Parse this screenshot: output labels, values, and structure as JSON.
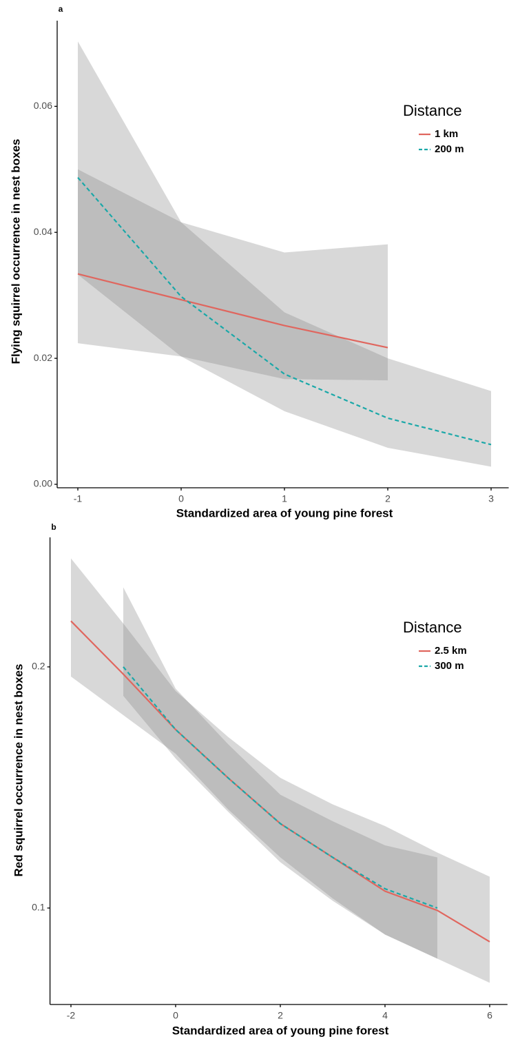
{
  "chart_data": [
    {
      "type": "line",
      "label": "a",
      "x_label": "Standardized area of young pine forest",
      "y_label": "Flying squirrel occurrence in nest boxes",
      "xlim": [
        -1.2,
        3.17
      ],
      "ylim": [
        -0.00055,
        0.0736
      ],
      "xticks": [
        -1,
        0,
        1,
        2,
        3
      ],
      "yticks": [
        {
          "value": 0,
          "label": "0.00"
        },
        0.02,
        0.04,
        0.06
      ],
      "legend_title": "Distance",
      "series": [
        {
          "name": "1 km",
          "color": "#e0665e",
          "linestyle": "solid",
          "x": [
            -1,
            0,
            1,
            2
          ],
          "values": [
            0.0334,
            0.0293,
            0.0252,
            0.0217
          ],
          "lower": [
            0.0224,
            0.0203,
            0.0167,
            0.0165
          ],
          "upper": [
            0.05,
            0.0416,
            0.0368,
            0.0381
          ]
        },
        {
          "name": "200 m",
          "color": "#1aa8a8",
          "linestyle": "dashed",
          "x": [
            -1,
            0,
            1,
            2,
            3
          ],
          "values": [
            0.0487,
            0.0298,
            0.0175,
            0.0105,
            0.0063
          ],
          "lower": [
            0.0333,
            0.0203,
            0.0116,
            0.0058,
            0.0028
          ],
          "upper": [
            0.0703,
            0.0416,
            0.0273,
            0.02,
            0.0148
          ]
        }
      ]
    },
    {
      "type": "line",
      "label": "b",
      "x_label": "Standardized area of young pine forest",
      "y_label": "Red squirrel occurrence in nest boxes",
      "xlim": [
        -2.4,
        6.34
      ],
      "ylim": [
        0.06,
        0.2537
      ],
      "xticks": [
        -2,
        0,
        2,
        4,
        6
      ],
      "yticks": [
        0.1,
        0.2
      ],
      "legend_title": "Distance",
      "series": [
        {
          "name": "2.5 km",
          "color": "#e0665e",
          "linestyle": "solid",
          "x": [
            -2,
            -1,
            0,
            1,
            2,
            3,
            4,
            5,
            6
          ],
          "values": [
            0.219,
            0.197,
            0.174,
            0.154,
            0.135,
            0.121,
            0.107,
            0.099,
            0.086
          ],
          "lower": [
            0.196,
            0.18,
            0.164,
            0.141,
            0.121,
            0.104,
            0.089,
            0.079,
            0.069
          ],
          "upper": [
            0.245,
            0.218,
            0.19,
            0.171,
            0.154,
            0.143,
            0.134,
            0.123,
            0.113
          ]
        },
        {
          "name": "300 m",
          "color": "#1aa8a8",
          "linestyle": "dashed",
          "x": [
            -1,
            0,
            1,
            2,
            3,
            4,
            5
          ],
          "values": [
            0.2,
            0.174,
            0.154,
            0.135,
            0.121,
            0.108,
            0.1
          ],
          "lower": [
            0.188,
            0.162,
            0.14,
            0.119,
            0.103,
            0.089,
            0.079
          ],
          "upper": [
            0.233,
            0.191,
            0.168,
            0.147,
            0.136,
            0.126,
            0.121
          ]
        }
      ]
    }
  ]
}
